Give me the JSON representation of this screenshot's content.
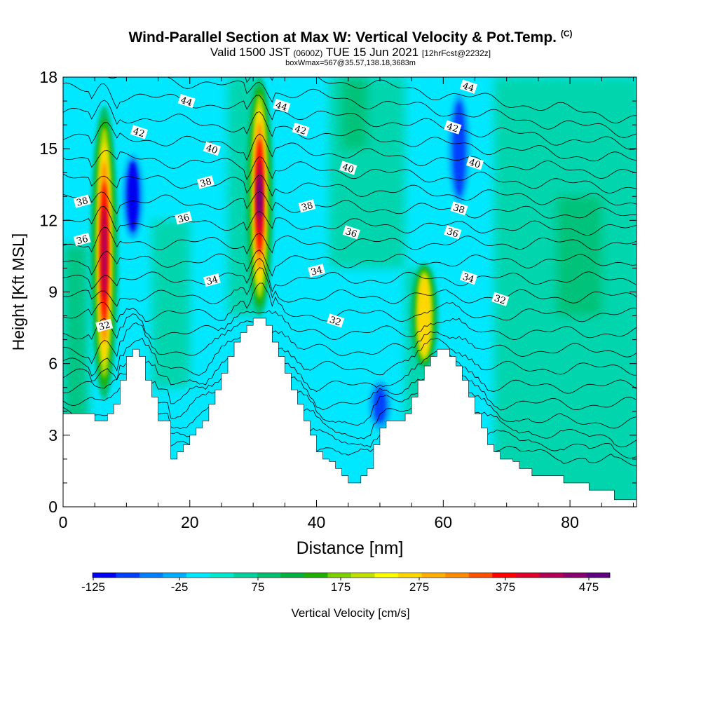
{
  "header": {
    "title": "Wind-Parallel Section at Max W: Vertical Velocity & Pot.Temp.",
    "copyright": "(C)",
    "valid_prefix": "Valid 1500 JST",
    "valid_utc": "(0600Z)",
    "valid_date": "TUE 15 Jun 2021",
    "forecast": "[12hrFcst@2232z]",
    "box_info": "boxWmax=567@35.57,138.18,3683m"
  },
  "chart_data": {
    "type": "heatmap",
    "xlabel": "Distance [nm]",
    "ylabel": "Height [Kft MSL]",
    "xlim": [
      0,
      90.5
    ],
    "ylim": [
      0,
      18
    ],
    "x_ticks": [
      "0",
      "20",
      "40",
      "60",
      "80"
    ],
    "y_ticks": [
      "0",
      "3",
      "6",
      "9",
      "12",
      "15",
      "18"
    ],
    "colorbar": {
      "label": "Vertical Velocity [cm/s]",
      "tick_labels": [
        "-125",
        "-25",
        "75",
        "175",
        "275",
        "375",
        "475"
      ],
      "colors": [
        "#0000f0",
        "#0040ff",
        "#0080ff",
        "#00b0ff",
        "#00e8ff",
        "#00e8cc",
        "#00d2a0",
        "#00c070",
        "#00b040",
        "#20b000",
        "#80d000",
        "#c0e000",
        "#ffff00",
        "#ffd800",
        "#ffb000",
        "#ff8c00",
        "#ff5000",
        "#ff0000",
        "#e0002a",
        "#b00058",
        "#880070",
        "#600080"
      ]
    },
    "terrain_profile": {
      "x": [
        0,
        5,
        7,
        8,
        9,
        10,
        11,
        12,
        13,
        14,
        15,
        17,
        18,
        19,
        20,
        21,
        22,
        23,
        24,
        25,
        26,
        27,
        28,
        29,
        30,
        31,
        32,
        33,
        34,
        35,
        36,
        37,
        38,
        39,
        40,
        41,
        42,
        43,
        44,
        45,
        46,
        47,
        48,
        49,
        50,
        51,
        52,
        53,
        54,
        55,
        56,
        57,
        58,
        59,
        60,
        61,
        62,
        63,
        64,
        65,
        66,
        67,
        68,
        69,
        70,
        71,
        72,
        73,
        74,
        75,
        76,
        77,
        78,
        79,
        80,
        81,
        82,
        83,
        84,
        85,
        86,
        87,
        88,
        90.5
      ],
      "y": [
        3.9,
        3.6,
        3.9,
        4.3,
        5.3,
        6.3,
        6.6,
        6.3,
        5.3,
        4.6,
        3.6,
        2.0,
        2.3,
        2.6,
        3.0,
        3.3,
        3.6,
        4.3,
        4.9,
        5.6,
        6.3,
        6.9,
        7.3,
        7.6,
        7.9,
        7.9,
        7.6,
        6.9,
        6.3,
        5.6,
        4.9,
        4.3,
        3.6,
        3.0,
        2.3,
        2.0,
        1.9,
        1.6,
        1.3,
        1.0,
        1.0,
        1.3,
        1.6,
        2.6,
        3.3,
        3.6,
        3.6,
        3.6,
        3.9,
        4.6,
        5.3,
        5.9,
        6.3,
        6.6,
        6.6,
        6.3,
        5.9,
        5.3,
        4.6,
        3.9,
        3.3,
        2.6,
        2.3,
        2.0,
        2.0,
        1.9,
        1.6,
        1.6,
        1.3,
        1.3,
        1.3,
        1.3,
        1.3,
        1.0,
        1.0,
        1.0,
        1.0,
        0.7,
        0.7,
        0.7,
        0.7,
        0.3,
        0.3,
        0.3
      ]
    },
    "updraft_cores": [
      {
        "x": 6.5,
        "y_min": 4.5,
        "y_max": 16.8,
        "max_w": 425
      },
      {
        "x": 31,
        "y_min": 8.0,
        "y_max": 18.0,
        "max_w": 475
      },
      {
        "x": 57,
        "y_min": 5.8,
        "y_max": 10.2,
        "max_w": 225
      }
    ],
    "downdraft_cores": [
      {
        "x": 11,
        "y_min": 11.5,
        "y_max": 14.5,
        "min_w": -125
      },
      {
        "x": 62.5,
        "y_min": 13.0,
        "y_max": 17.0,
        "min_w": -100
      },
      {
        "x": 50,
        "y_min": 3.5,
        "y_max": 5.0,
        "min_w": -100
      }
    ],
    "isentrope_values": [
      32,
      34,
      36,
      38,
      40,
      42,
      44
    ],
    "isentrope_labels": [
      {
        "text": "32",
        "x": 6.5,
        "y": 7.6
      },
      {
        "text": "32",
        "x": 43,
        "y": 7.8
      },
      {
        "text": "32",
        "x": 69,
        "y": 8.7
      },
      {
        "text": "34",
        "x": 23.5,
        "y": 9.5
      },
      {
        "text": "34",
        "x": 40,
        "y": 9.9
      },
      {
        "text": "34",
        "x": 64,
        "y": 9.6
      },
      {
        "text": "36",
        "x": 3,
        "y": 11.2
      },
      {
        "text": "36",
        "x": 19,
        "y": 12.1
      },
      {
        "text": "36",
        "x": 45.5,
        "y": 11.5
      },
      {
        "text": "36",
        "x": 61.5,
        "y": 11.5
      },
      {
        "text": "38",
        "x": 3,
        "y": 12.8
      },
      {
        "text": "38",
        "x": 22.5,
        "y": 13.6
      },
      {
        "text": "38",
        "x": 38.5,
        "y": 12.6
      },
      {
        "text": "38",
        "x": 62.5,
        "y": 12.5
      },
      {
        "text": "40",
        "x": 23.5,
        "y": 15.0
      },
      {
        "text": "40",
        "x": 45,
        "y": 14.2
      },
      {
        "text": "40",
        "x": 65,
        "y": 14.4
      },
      {
        "text": "42",
        "x": 12,
        "y": 15.7
      },
      {
        "text": "42",
        "x": 37.5,
        "y": 15.8
      },
      {
        "text": "42",
        "x": 61.5,
        "y": 15.9
      },
      {
        "text": "44",
        "x": 19.5,
        "y": 17.0
      },
      {
        "text": "44",
        "x": 34.5,
        "y": 16.8
      },
      {
        "text": "44",
        "x": 64,
        "y": 17.6
      }
    ]
  }
}
